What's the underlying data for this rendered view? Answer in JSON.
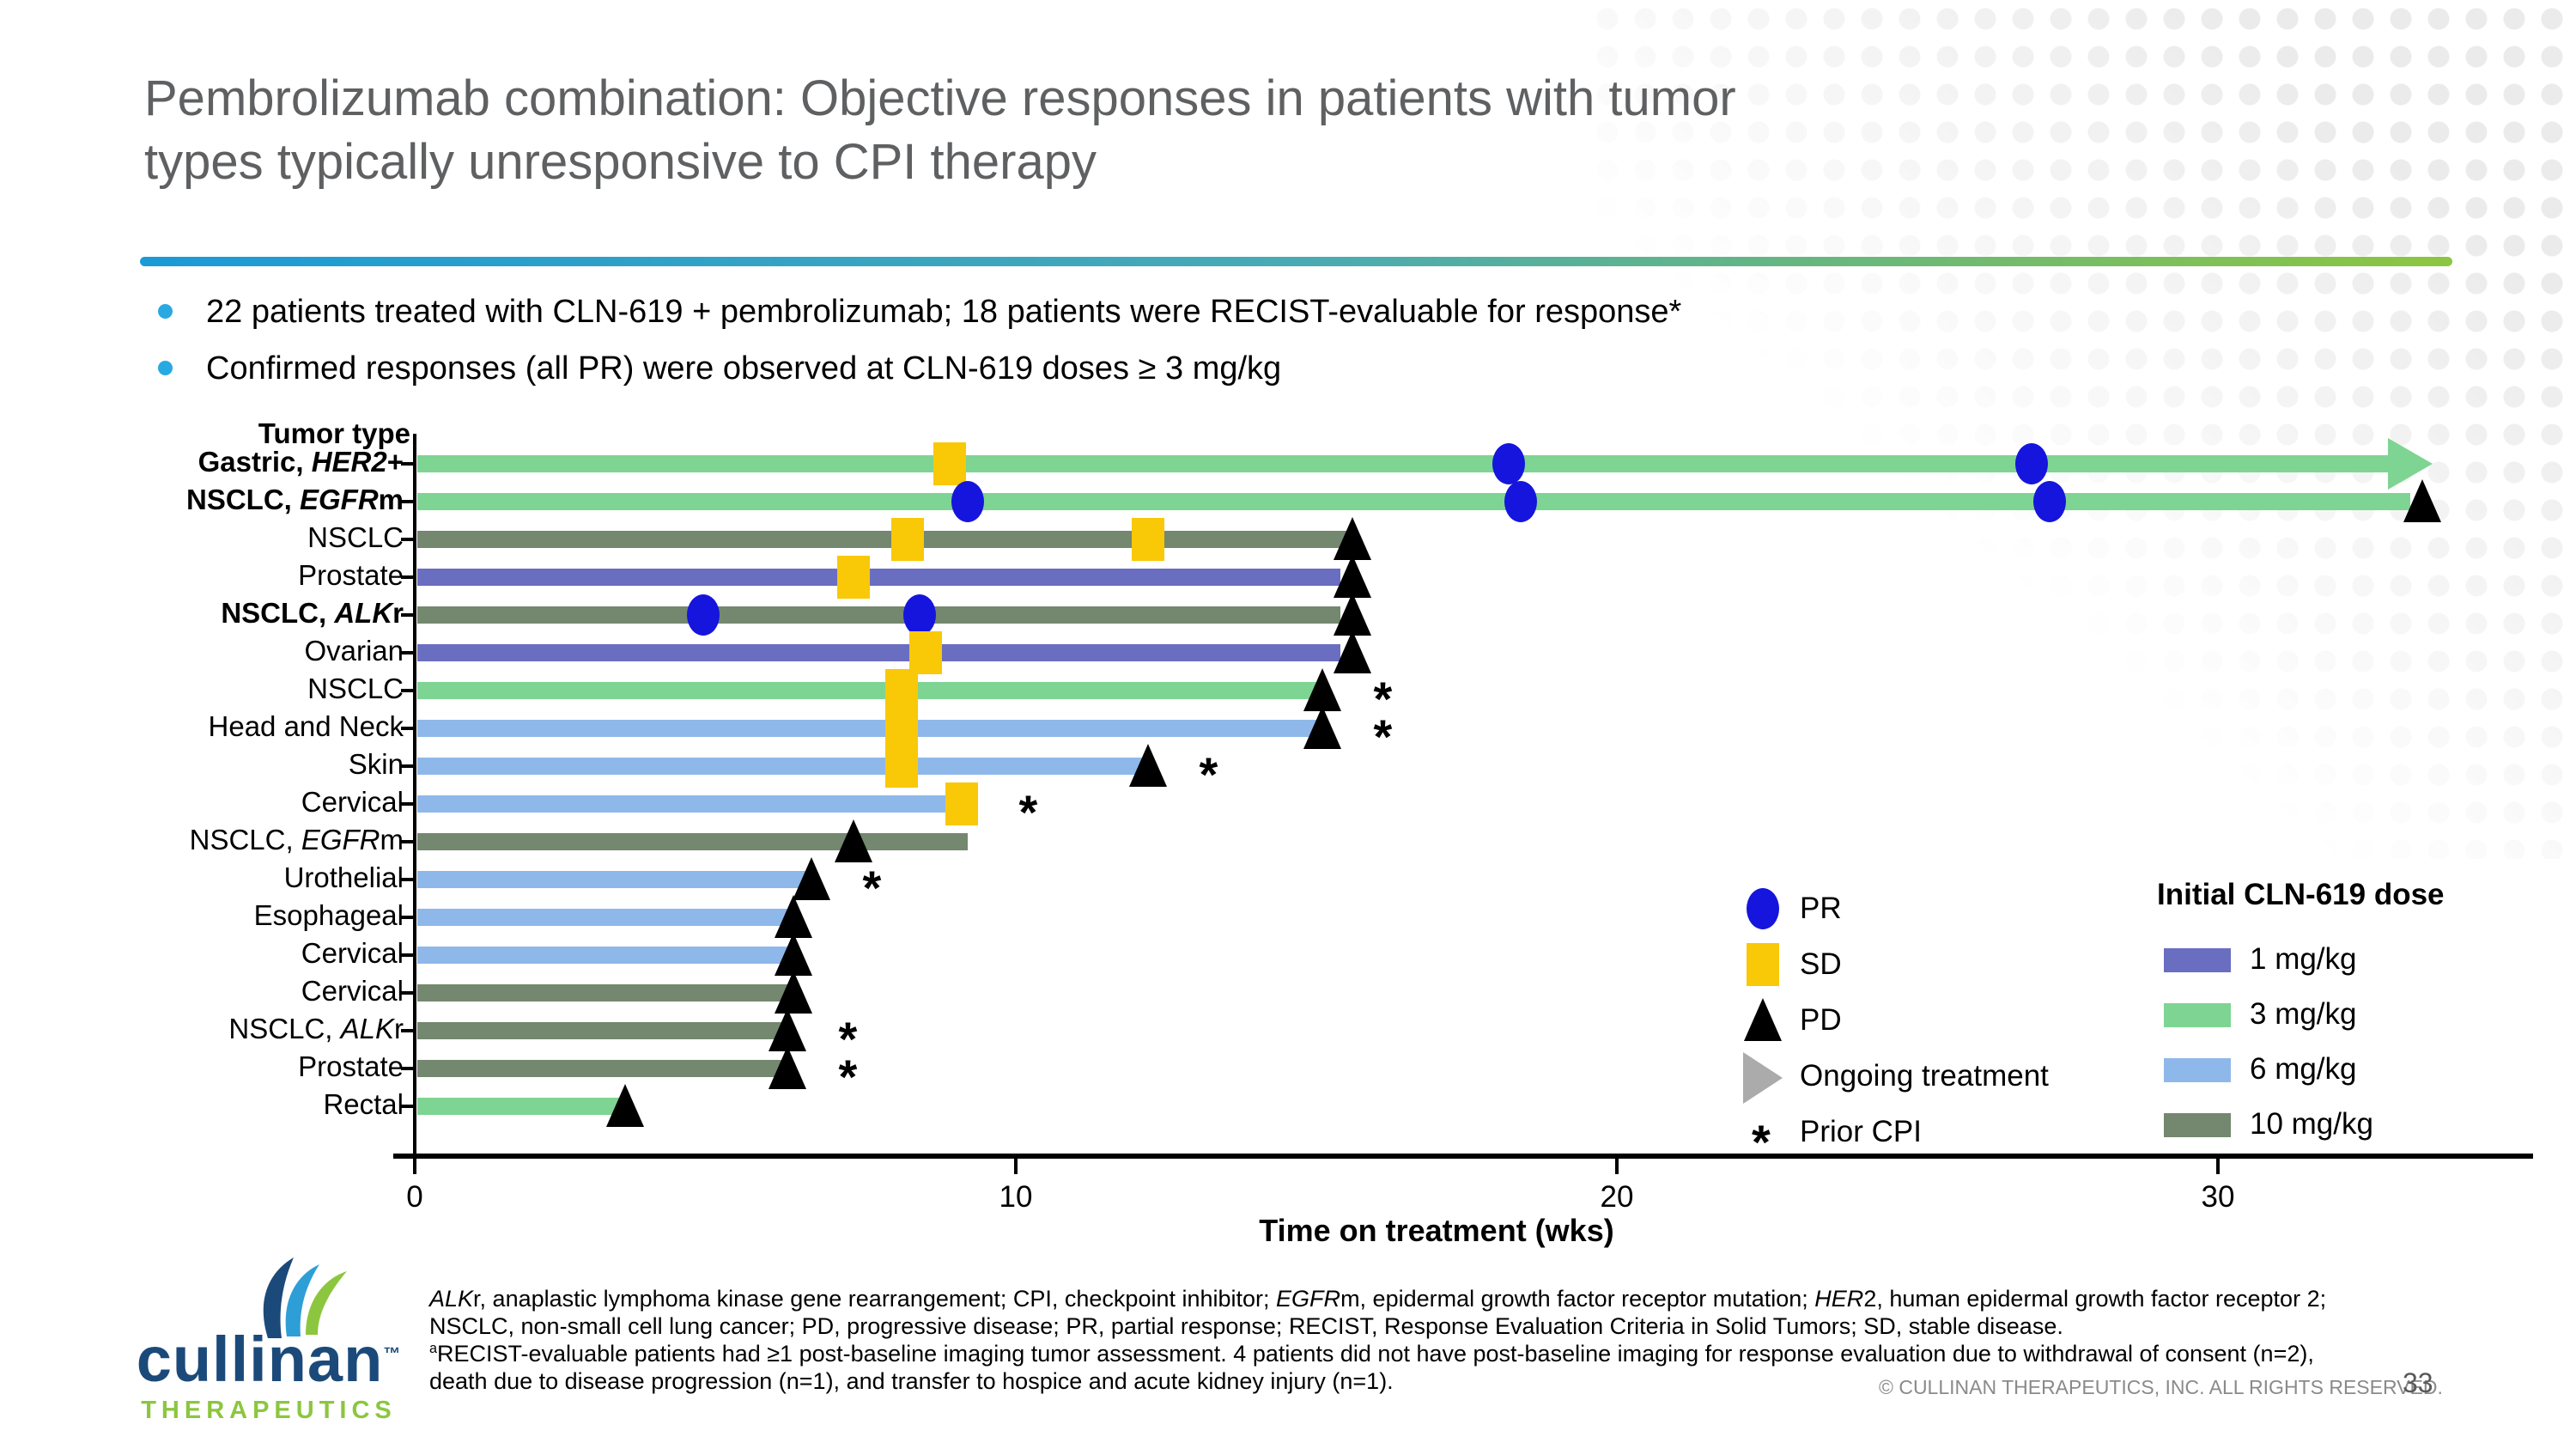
{
  "slide": {
    "title_line1": "Pembrolizumab combination: Objective responses in patients with tumor",
    "title_line2": "types typically unresponsive to CPI therapy",
    "bullets": [
      "22 patients treated with CLN-619 + pembrolizumab; 18 patients were RECIST-evaluable for response*",
      "Confirmed responses (all PR) were observed at CLN-619 doses ≥ 3 mg/kg"
    ],
    "footer_copyright": "© CULLINAN THERAPEUTICS, INC. ALL RIGHTS RESERVED.",
    "page_number": "33",
    "logo": {
      "wordmark": "cullinan",
      "tm": "™",
      "subtext": "THERAPEUTICS"
    }
  },
  "colors": {
    "title_gray": "#5f6062",
    "bullet_blue": "#29a9e1",
    "rule_gradient_left": "#1b9ad6",
    "rule_gradient_right": "#8dc63f",
    "pr_blue": "#1515dd",
    "sd_yellow": "#f9c806",
    "pd_black": "#000000",
    "ongoing_legend_gray": "#ababab",
    "logo_navy": "#1b4a7a",
    "logo_green": "#8cc63f"
  },
  "chart_data": {
    "type": "bar",
    "subtype": "horizontal-swimmer-plot",
    "row_axis_title": "Tumor type",
    "xlabel": "Time on treatment (wks)",
    "unit": "weeks",
    "xlim": [
      0,
      34
    ],
    "xticks": [
      0,
      10,
      20,
      30
    ],
    "grid": false,
    "rows": [
      {
        "label": "Gastric, HER2+",
        "segments": [
          {
            "t": "Gastric, ",
            "b": true
          },
          {
            "t": "HER2",
            "b": true,
            "i": true
          },
          {
            "t": "+",
            "b": true
          }
        ],
        "dose": "3 mg/kg",
        "length_wks": 32.9,
        "ongoing": true,
        "pr_wks": [
          18.2,
          26.9
        ],
        "sd_wks": [
          8.9
        ],
        "pd_wk": null,
        "prior_cpi": false
      },
      {
        "label": "NSCLC, EGFRm",
        "segments": [
          {
            "t": "NSCLC, ",
            "b": true
          },
          {
            "t": "EGFR",
            "b": true,
            "i": true
          },
          {
            "t": "m",
            "b": true
          }
        ],
        "dose": "3 mg/kg",
        "length_wks": 33.2,
        "ongoing": false,
        "pr_wks": [
          9.2,
          18.4,
          27.2
        ],
        "sd_wks": [],
        "pd_wk": 33.4,
        "prior_cpi": false
      },
      {
        "label": "NSCLC",
        "segments": [
          {
            "t": "NSCLC"
          }
        ],
        "dose": "10 mg/kg",
        "length_wks": 15.5,
        "ongoing": false,
        "pr_wks": [],
        "sd_wks": [
          8.2,
          12.2
        ],
        "pd_wk": 15.6,
        "prior_cpi": false
      },
      {
        "label": "Prostate",
        "segments": [
          {
            "t": "Prostate"
          }
        ],
        "dose": "1 mg/kg",
        "length_wks": 15.4,
        "ongoing": false,
        "pr_wks": [],
        "sd_wks": [
          7.3
        ],
        "pd_wk": 15.6,
        "prior_cpi": false
      },
      {
        "label": "NSCLC, ALKr",
        "segments": [
          {
            "t": "NSCLC, ",
            "b": true
          },
          {
            "t": "ALK",
            "b": true,
            "i": true
          },
          {
            "t": "r",
            "b": true
          }
        ],
        "dose": "10 mg/kg",
        "length_wks": 15.4,
        "ongoing": false,
        "pr_wks": [
          4.8,
          8.4
        ],
        "sd_wks": [],
        "pd_wk": 15.6,
        "prior_cpi": false
      },
      {
        "label": "Ovarian",
        "segments": [
          {
            "t": "Ovarian"
          }
        ],
        "dose": "1 mg/kg",
        "length_wks": 15.4,
        "ongoing": false,
        "pr_wks": [],
        "sd_wks": [
          8.5
        ],
        "pd_wk": 15.6,
        "prior_cpi": false
      },
      {
        "label": "NSCLC",
        "segments": [
          {
            "t": "NSCLC"
          }
        ],
        "dose": "3 mg/kg",
        "length_wks": 15.0,
        "ongoing": false,
        "pr_wks": [],
        "sd_wks": [
          8.1
        ],
        "pd_wk": 15.1,
        "prior_cpi": true
      },
      {
        "label": "Head and Neck",
        "segments": [
          {
            "t": "Head and Neck"
          }
        ],
        "dose": "6 mg/kg",
        "length_wks": 15.0,
        "ongoing": false,
        "pr_wks": [],
        "sd_wks": [
          8.1
        ],
        "pd_wk": 15.1,
        "prior_cpi": true
      },
      {
        "label": "Skin",
        "segments": [
          {
            "t": "Skin"
          }
        ],
        "dose": "6 mg/kg",
        "length_wks": 12.1,
        "ongoing": false,
        "pr_wks": [],
        "sd_wks": [
          8.1
        ],
        "pd_wk": 12.2,
        "prior_cpi": true
      },
      {
        "label": "Cervical",
        "segments": [
          {
            "t": "Cervical"
          }
        ],
        "dose": "6 mg/kg",
        "length_wks": 9.2,
        "ongoing": false,
        "pr_wks": [],
        "sd_wks": [
          9.1
        ],
        "pd_wk": null,
        "prior_cpi": true
      },
      {
        "label": "NSCLC, EGFRm",
        "segments": [
          {
            "t": "NSCLC, "
          },
          {
            "t": "EGFR",
            "i": true
          },
          {
            "t": "m"
          }
        ],
        "dose": "10 mg/kg",
        "length_wks": 9.2,
        "ongoing": false,
        "pr_wks": [],
        "sd_wks": [],
        "pd_wk": 7.3,
        "prior_cpi": false
      },
      {
        "label": "Urothelial",
        "segments": [
          {
            "t": "Urothelial"
          }
        ],
        "dose": "6 mg/kg",
        "length_wks": 6.6,
        "ongoing": false,
        "pr_wks": [],
        "sd_wks": [],
        "pd_wk": 6.6,
        "prior_cpi": true
      },
      {
        "label": "Esophageal",
        "segments": [
          {
            "t": "Esophageal"
          }
        ],
        "dose": "6 mg/kg",
        "length_wks": 6.3,
        "ongoing": false,
        "pr_wks": [],
        "sd_wks": [],
        "pd_wk": 6.3,
        "prior_cpi": false
      },
      {
        "label": "Cervical",
        "segments": [
          {
            "t": "Cervical"
          }
        ],
        "dose": "6 mg/kg",
        "length_wks": 6.3,
        "ongoing": false,
        "pr_wks": [],
        "sd_wks": [],
        "pd_wk": 6.3,
        "prior_cpi": false
      },
      {
        "label": "Cervical",
        "segments": [
          {
            "t": "Cervical"
          }
        ],
        "dose": "10 mg/kg",
        "length_wks": 6.3,
        "ongoing": false,
        "pr_wks": [],
        "sd_wks": [],
        "pd_wk": 6.3,
        "prior_cpi": false
      },
      {
        "label": "NSCLC, ALKr",
        "segments": [
          {
            "t": "NSCLC, "
          },
          {
            "t": "ALK",
            "i": true
          },
          {
            "t": "r"
          }
        ],
        "dose": "10 mg/kg",
        "length_wks": 6.2,
        "ongoing": false,
        "pr_wks": [],
        "sd_wks": [],
        "pd_wk": 6.2,
        "prior_cpi": true
      },
      {
        "label": "Prostate",
        "segments": [
          {
            "t": "Prostate"
          }
        ],
        "dose": "10 mg/kg",
        "length_wks": 6.2,
        "ongoing": false,
        "pr_wks": [],
        "sd_wks": [],
        "pd_wk": 6.2,
        "prior_cpi": true
      },
      {
        "label": "Rectal",
        "segments": [
          {
            "t": "Rectal"
          }
        ],
        "dose": "3 mg/kg",
        "length_wks": 3.4,
        "ongoing": false,
        "pr_wks": [],
        "sd_wks": [],
        "pd_wk": 3.5,
        "prior_cpi": false
      }
    ],
    "legend": {
      "pr_label": "PR",
      "sd_label": "SD",
      "pd_label": "PD",
      "ongoing_label": "Ongoing treatment",
      "prior_cpi_label": "Prior CPI",
      "prior_cpi_symbol": "*",
      "dose_header": "Initial CLN-619 dose",
      "dose_items": [
        {
          "label": "1 mg/kg",
          "color": "#6a6ec0"
        },
        {
          "label": "3 mg/kg",
          "color": "#7ed492"
        },
        {
          "label": "6 mg/kg",
          "color": "#8fb8ea"
        },
        {
          "label": "10 mg/kg",
          "color": "#74876f"
        }
      ]
    }
  },
  "footnotes": [
    [
      {
        "t": "ALK",
        "i": true
      },
      {
        "t": "r, anaplastic lymphoma kinase gene rearrangement; CPI, checkpoint inhibitor;  "
      },
      {
        "t": "EGFR",
        "i": true
      },
      {
        "t": "m, epidermal growth factor receptor mutation; "
      },
      {
        "t": "HER",
        "i": true
      },
      {
        "t": "2, human epidermal growth factor receptor 2;"
      }
    ],
    [
      {
        "t": "NSCLC, non-small cell lung cancer; PD, progressive disease; PR, partial response; RECIST, Response Evaluation Criteria in Solid Tumors; SD, stable disease."
      }
    ],
    [
      {
        "t": "a",
        "sup": true
      },
      {
        "t": "RECIST-evaluable patients had ≥1 post-baseline imaging tumor assessment. 4 patients did not have post-baseline imaging for response evaluation due to withdrawal of consent (n=2),"
      }
    ],
    [
      {
        "t": "death due to disease progression (n=1), and transfer to hospice and acute kidney injury (n=1)."
      }
    ]
  ]
}
